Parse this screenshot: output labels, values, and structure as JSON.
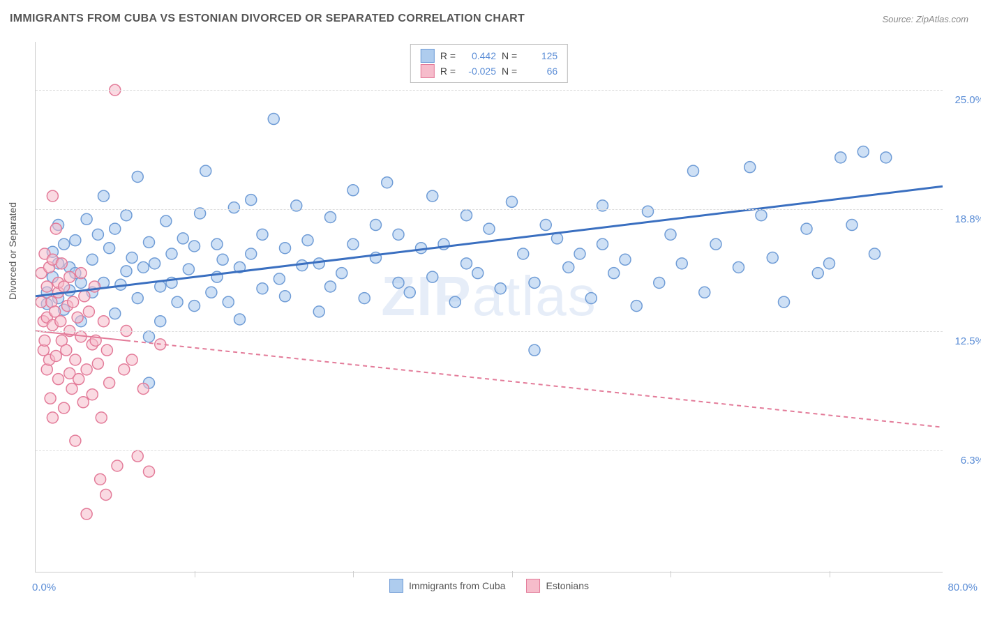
{
  "title": "IMMIGRANTS FROM CUBA VS ESTONIAN DIVORCED OR SEPARATED CORRELATION CHART",
  "source": "Source: ZipAtlas.com",
  "ylabel": "Divorced or Separated",
  "watermark_a": "ZIP",
  "watermark_b": "atlas",
  "chart": {
    "type": "scatter",
    "background_color": "#ffffff",
    "grid_color": "#dddddd",
    "xlim": [
      0,
      80
    ],
    "ylim": [
      0,
      27.5
    ],
    "ytick_values": [
      6.3,
      12.5,
      18.8,
      25.0
    ],
    "ytick_labels": [
      "6.3%",
      "12.5%",
      "18.8%",
      "25.0%"
    ],
    "xlabel_start": "0.0%",
    "xlabel_end": "80.0%",
    "xgrid_values": [
      14,
      28,
      42,
      56,
      70
    ],
    "marker_radius": 8,
    "marker_stroke_width": 1.5,
    "series": [
      {
        "name": "Immigrants from Cuba",
        "fill": "#aeccee",
        "stroke": "#6f9cd6",
        "fill_opacity": 0.6,
        "r": 0.442,
        "n": 125,
        "regression": {
          "x0": 0,
          "y0": 14.3,
          "x1": 80,
          "y1": 20.0,
          "color": "#3a6fc0",
          "width": 3,
          "dash": ""
        },
        "points": [
          [
            1,
            13.9
          ],
          [
            1,
            14.5
          ],
          [
            1.5,
            15.3
          ],
          [
            1.5,
            16.6
          ],
          [
            2,
            14.2
          ],
          [
            2,
            18.0
          ],
          [
            2,
            16.0
          ],
          [
            2.5,
            13.6
          ],
          [
            2.5,
            17.0
          ],
          [
            3,
            15.8
          ],
          [
            3,
            14.6
          ],
          [
            3.5,
            15.5
          ],
          [
            3.5,
            17.2
          ],
          [
            4,
            15.0
          ],
          [
            4,
            13.0
          ],
          [
            4.5,
            18.3
          ],
          [
            5,
            16.2
          ],
          [
            5,
            14.5
          ],
          [
            5.5,
            17.5
          ],
          [
            6,
            19.5
          ],
          [
            6,
            15.0
          ],
          [
            6.5,
            16.8
          ],
          [
            7,
            13.4
          ],
          [
            7,
            17.8
          ],
          [
            7.5,
            14.9
          ],
          [
            8,
            18.5
          ],
          [
            8,
            15.6
          ],
          [
            8.5,
            16.3
          ],
          [
            9,
            14.2
          ],
          [
            9,
            20.5
          ],
          [
            9.5,
            15.8
          ],
          [
            10,
            12.2
          ],
          [
            10,
            17.1
          ],
          [
            10,
            9.8
          ],
          [
            10.5,
            16.0
          ],
          [
            11,
            14.8
          ],
          [
            11,
            13.0
          ],
          [
            11.5,
            18.2
          ],
          [
            12,
            16.5
          ],
          [
            12,
            15.0
          ],
          [
            12.5,
            14.0
          ],
          [
            13,
            17.3
          ],
          [
            13.5,
            15.7
          ],
          [
            14,
            16.9
          ],
          [
            14,
            13.8
          ],
          [
            14.5,
            18.6
          ],
          [
            15,
            20.8
          ],
          [
            15.5,
            14.5
          ],
          [
            16,
            17.0
          ],
          [
            16,
            15.3
          ],
          [
            16.5,
            16.2
          ],
          [
            17,
            14.0
          ],
          [
            17.5,
            18.9
          ],
          [
            18,
            13.1
          ],
          [
            18,
            15.8
          ],
          [
            19,
            19.3
          ],
          [
            19,
            16.5
          ],
          [
            20,
            14.7
          ],
          [
            20,
            17.5
          ],
          [
            21,
            23.5
          ],
          [
            21.5,
            15.2
          ],
          [
            22,
            16.8
          ],
          [
            22,
            14.3
          ],
          [
            23,
            19.0
          ],
          [
            23.5,
            15.9
          ],
          [
            24,
            17.2
          ],
          [
            25,
            13.5
          ],
          [
            25,
            16.0
          ],
          [
            26,
            14.8
          ],
          [
            26,
            18.4
          ],
          [
            27,
            15.5
          ],
          [
            28,
            17.0
          ],
          [
            28,
            19.8
          ],
          [
            29,
            14.2
          ],
          [
            30,
            16.3
          ],
          [
            30,
            18.0
          ],
          [
            31,
            20.2
          ],
          [
            32,
            15.0
          ],
          [
            32,
            17.5
          ],
          [
            33,
            14.5
          ],
          [
            34,
            16.8
          ],
          [
            35,
            19.5
          ],
          [
            35,
            15.3
          ],
          [
            36,
            17.0
          ],
          [
            37,
            14.0
          ],
          [
            38,
            18.5
          ],
          [
            38,
            16.0
          ],
          [
            39,
            15.5
          ],
          [
            40,
            17.8
          ],
          [
            41,
            14.7
          ],
          [
            42,
            19.2
          ],
          [
            43,
            16.5
          ],
          [
            44,
            15.0
          ],
          [
            44,
            11.5
          ],
          [
            45,
            18.0
          ],
          [
            46,
            17.3
          ],
          [
            47,
            15.8
          ],
          [
            48,
            16.5
          ],
          [
            49,
            14.2
          ],
          [
            50,
            19.0
          ],
          [
            50,
            17.0
          ],
          [
            51,
            15.5
          ],
          [
            52,
            16.2
          ],
          [
            53,
            13.8
          ],
          [
            54,
            18.7
          ],
          [
            55,
            15.0
          ],
          [
            56,
            17.5
          ],
          [
            57,
            16.0
          ],
          [
            58,
            20.8
          ],
          [
            59,
            14.5
          ],
          [
            60,
            17.0
          ],
          [
            62,
            15.8
          ],
          [
            63,
            21.0
          ],
          [
            64,
            18.5
          ],
          [
            65,
            16.3
          ],
          [
            66,
            14.0
          ],
          [
            68,
            17.8
          ],
          [
            69,
            15.5
          ],
          [
            70,
            16.0
          ],
          [
            71,
            21.5
          ],
          [
            72,
            18.0
          ],
          [
            73,
            21.8
          ],
          [
            74,
            16.5
          ],
          [
            75,
            21.5
          ]
        ]
      },
      {
        "name": "Estonians",
        "fill": "#f6bccb",
        "stroke": "#e37b99",
        "fill_opacity": 0.55,
        "r": -0.025,
        "n": 66,
        "regression": {
          "x0": 0,
          "y0": 12.5,
          "x1": 80,
          "y1": 7.5,
          "color": "#e37b99",
          "width": 2,
          "dash": "6 5",
          "solid_until": 8
        },
        "points": [
          [
            0.5,
            14.0
          ],
          [
            0.5,
            15.5
          ],
          [
            0.7,
            13.0
          ],
          [
            0.7,
            11.5
          ],
          [
            0.8,
            16.5
          ],
          [
            0.8,
            12.0
          ],
          [
            1,
            14.8
          ],
          [
            1,
            10.5
          ],
          [
            1,
            13.2
          ],
          [
            1.2,
            15.8
          ],
          [
            1.2,
            11.0
          ],
          [
            1.3,
            9.0
          ],
          [
            1.4,
            14.0
          ],
          [
            1.5,
            19.5
          ],
          [
            1.5,
            12.8
          ],
          [
            1.5,
            16.2
          ],
          [
            1.5,
            8.0
          ],
          [
            1.7,
            13.5
          ],
          [
            1.8,
            17.8
          ],
          [
            1.8,
            11.2
          ],
          [
            2,
            14.5
          ],
          [
            2,
            10.0
          ],
          [
            2,
            15.0
          ],
          [
            2.2,
            13.0
          ],
          [
            2.3,
            16.0
          ],
          [
            2.3,
            12.0
          ],
          [
            2.5,
            8.5
          ],
          [
            2.5,
            14.8
          ],
          [
            2.7,
            11.5
          ],
          [
            2.8,
            13.8
          ],
          [
            3,
            10.3
          ],
          [
            3,
            15.3
          ],
          [
            3,
            12.5
          ],
          [
            3.2,
            9.5
          ],
          [
            3.3,
            14.0
          ],
          [
            3.5,
            11.0
          ],
          [
            3.5,
            6.8
          ],
          [
            3.7,
            13.2
          ],
          [
            3.8,
            10.0
          ],
          [
            4,
            15.5
          ],
          [
            4,
            12.2
          ],
          [
            4.2,
            8.8
          ],
          [
            4.3,
            14.3
          ],
          [
            4.5,
            10.5
          ],
          [
            4.5,
            3.0
          ],
          [
            4.7,
            13.5
          ],
          [
            5,
            11.8
          ],
          [
            5,
            9.2
          ],
          [
            5.2,
            14.8
          ],
          [
            5.3,
            12.0
          ],
          [
            5.5,
            10.8
          ],
          [
            5.7,
            4.8
          ],
          [
            5.8,
            8.0
          ],
          [
            6,
            13.0
          ],
          [
            6.2,
            4.0
          ],
          [
            6.3,
            11.5
          ],
          [
            6.5,
            9.8
          ],
          [
            7,
            25.0
          ],
          [
            7.2,
            5.5
          ],
          [
            7.8,
            10.5
          ],
          [
            8,
            12.5
          ],
          [
            8.5,
            11.0
          ],
          [
            9,
            6.0
          ],
          [
            9.5,
            9.5
          ],
          [
            10,
            5.2
          ],
          [
            11,
            11.8
          ]
        ]
      }
    ]
  },
  "stats_legend": {
    "r_label": "R =",
    "n_label": "N =",
    "rows": [
      {
        "swatch_fill": "#aeccee",
        "swatch_stroke": "#6f9cd6",
        "r": "0.442",
        "n": "125"
      },
      {
        "swatch_fill": "#f6bccb",
        "swatch_stroke": "#e37b99",
        "r": "-0.025",
        "n": "66"
      }
    ]
  },
  "bottom_legend": [
    {
      "swatch_fill": "#aeccee",
      "swatch_stroke": "#6f9cd6",
      "label": "Immigrants from Cuba"
    },
    {
      "swatch_fill": "#f6bccb",
      "swatch_stroke": "#e37b99",
      "label": "Estonians"
    }
  ]
}
